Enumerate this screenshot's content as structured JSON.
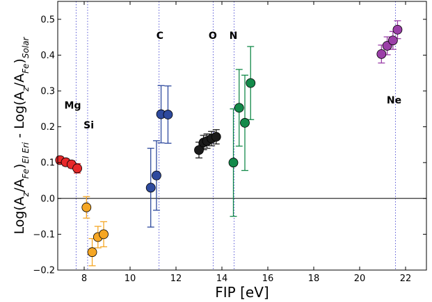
{
  "chart_data": {
    "type": "scatter",
    "xlabel": "FIP [eV]",
    "ylabel_parts": [
      "Log(A",
      "z",
      "/A",
      "Fe",
      ")",
      "EI Eri",
      " - Log(A",
      "z",
      "/A",
      "Fe",
      ")",
      "Solar"
    ],
    "xlim": [
      6.5,
      22.5
    ],
    "ylim": [
      -0.2,
      0.55
    ],
    "xticks": [
      8,
      10,
      12,
      14,
      16,
      18,
      20,
      22
    ],
    "yticks": [
      -0.2,
      -0.1,
      0.0,
      0.1,
      0.2,
      0.3,
      0.4,
      0.5
    ],
    "xtick_labels": [
      "8",
      "10",
      "12",
      "14",
      "16",
      "18",
      "20",
      "22"
    ],
    "ytick_labels": [
      "−0.2",
      "−0.1",
      "0.0",
      "0.1",
      "0.2",
      "0.3",
      "0.4",
      "0.5"
    ],
    "reference_line_y": 0.0,
    "grid": false,
    "element_markers": [
      {
        "label": "Mg",
        "fip": 7.65,
        "label_x": 7.5,
        "label_y": 0.26
      },
      {
        "label": "Si",
        "fip": 8.15,
        "label_x": 8.2,
        "label_y": 0.205
      },
      {
        "label": "C",
        "fip": 11.26,
        "label_x": 11.3,
        "label_y": 0.455
      },
      {
        "label": "O",
        "fip": 13.62,
        "label_x": 13.6,
        "label_y": 0.455
      },
      {
        "label": "N",
        "fip": 14.53,
        "label_x": 14.5,
        "label_y": 0.455
      },
      {
        "label": "Ne",
        "fip": 21.56,
        "label_x": 21.5,
        "label_y": 0.275
      }
    ],
    "series": [
      {
        "color": "#e8282a",
        "points": [
          {
            "x": 6.95,
            "y": 0.107,
            "err": 0.01
          },
          {
            "x": 7.2,
            "y": 0.101,
            "err": 0.01
          },
          {
            "x": 7.45,
            "y": 0.095,
            "err": 0.01
          },
          {
            "x": 7.7,
            "y": 0.084,
            "err": 0.013
          }
        ]
      },
      {
        "color": "#f5a623",
        "points": [
          {
            "x": 8.1,
            "y": -0.025,
            "err": 0.03
          },
          {
            "x": 8.35,
            "y": -0.15,
            "err": 0.038
          },
          {
            "x": 8.6,
            "y": -0.108,
            "err": 0.03
          },
          {
            "x": 8.85,
            "y": -0.1,
            "err": 0.035
          }
        ]
      },
      {
        "color": "#2e4a9e",
        "points": [
          {
            "x": 10.9,
            "y": 0.03,
            "err": 0.11
          },
          {
            "x": 11.15,
            "y": 0.064,
            "err": 0.097
          },
          {
            "x": 11.35,
            "y": 0.235,
            "err": 0.08
          },
          {
            "x": 11.65,
            "y": 0.234,
            "err": 0.08
          }
        ]
      },
      {
        "color": "#1a1a1a",
        "points": [
          {
            "x": 13.0,
            "y": 0.135,
            "err": 0.022
          },
          {
            "x": 13.2,
            "y": 0.156,
            "err": 0.02
          },
          {
            "x": 13.35,
            "y": 0.16,
            "err": 0.02
          },
          {
            "x": 13.55,
            "y": 0.167,
            "err": 0.02
          },
          {
            "x": 13.75,
            "y": 0.172,
            "err": 0.02
          }
        ]
      },
      {
        "color": "#138a4a",
        "points": [
          {
            "x": 14.5,
            "y": 0.1,
            "err": 0.15
          },
          {
            "x": 14.75,
            "y": 0.253,
            "err": 0.107
          },
          {
            "x": 15.0,
            "y": 0.211,
            "err": 0.133
          },
          {
            "x": 15.25,
            "y": 0.322,
            "err": 0.102
          }
        ]
      },
      {
        "color": "#9b3fa8",
        "points": [
          {
            "x": 20.95,
            "y": 0.403,
            "err": 0.025
          },
          {
            "x": 21.2,
            "y": 0.426,
            "err": 0.025
          },
          {
            "x": 21.45,
            "y": 0.441,
            "err": 0.025
          },
          {
            "x": 21.65,
            "y": 0.471,
            "err": 0.025
          }
        ]
      }
    ]
  }
}
